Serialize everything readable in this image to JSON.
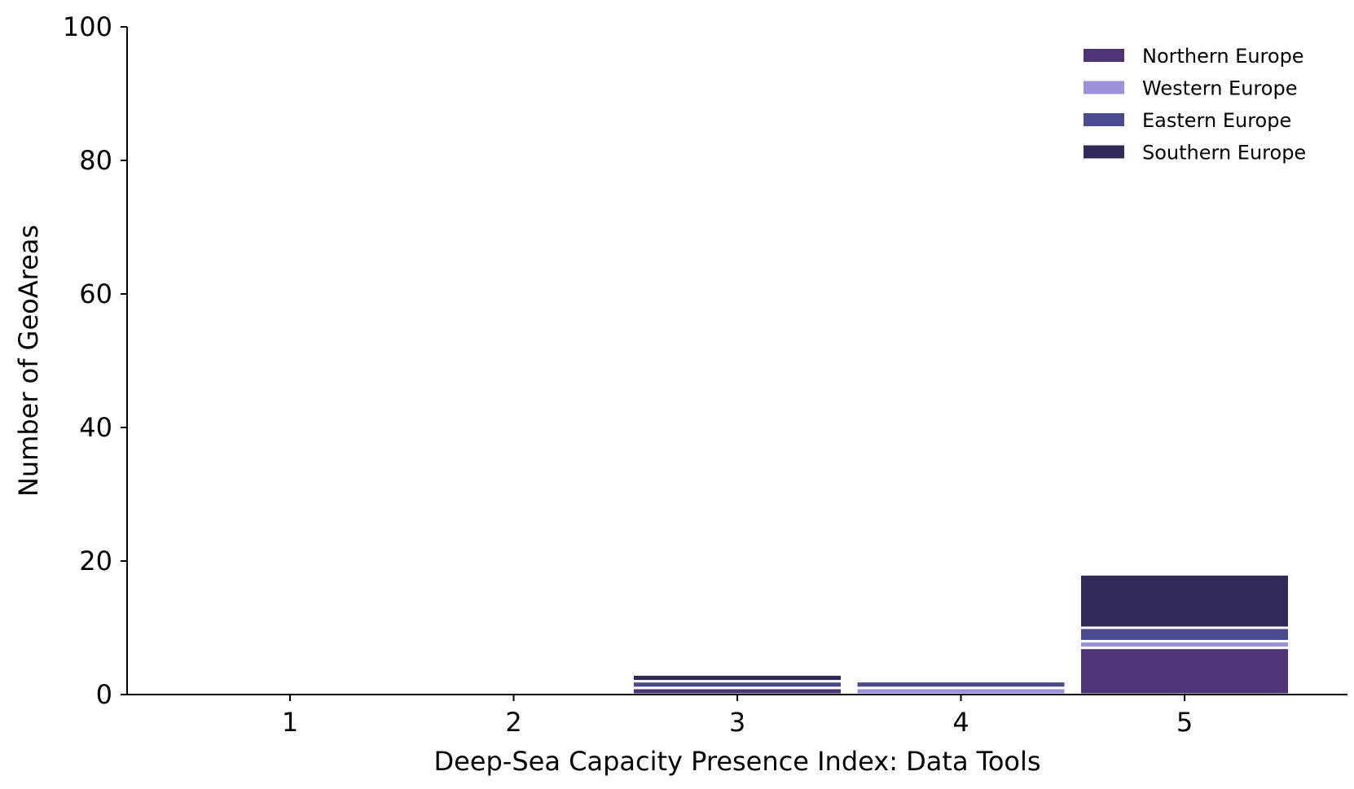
{
  "chart_data": {
    "type": "bar",
    "stacked": true,
    "xlabel": "Deep-Sea Capacity Presence Index: Data Tools",
    "ylabel": "Number of GeoAreas",
    "categories": [
      "1",
      "2",
      "3",
      "4",
      "5"
    ],
    "ylim": [
      0,
      100
    ],
    "yticks": [
      0,
      20,
      40,
      60,
      80,
      100
    ],
    "grid": false,
    "legend_position": "top-right",
    "series": [
      {
        "name": "Northern Europe",
        "color": "#4e3474",
        "values": [
          0,
          0,
          1,
          0,
          7
        ]
      },
      {
        "name": "Western Europe",
        "color": "#9b92d9",
        "values": [
          0,
          0,
          0,
          1,
          1
        ]
      },
      {
        "name": "Eastern Europe",
        "color": "#4a4a8f",
        "values": [
          0,
          0,
          1,
          1,
          2
        ]
      },
      {
        "name": "Southern Europe",
        "color": "#302a58",
        "values": [
          0,
          0,
          1,
          0,
          8
        ]
      }
    ]
  }
}
